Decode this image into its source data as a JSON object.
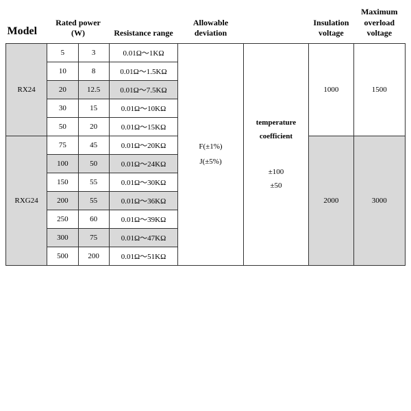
{
  "headers": {
    "model": "Model",
    "rated_power": "Rated power (W)",
    "resistance_range": "Resistance range",
    "allowable_deviation": "Allowable deviation",
    "insulation_voltage": "Insulation voltage",
    "max_overload_voltage": "Maximum overload voltage"
  },
  "deviation": {
    "line1": "F(±1%)",
    "line2": "J(±5%)"
  },
  "tempcoef": {
    "title1": "temperature",
    "title2": "coefficient",
    "val1": "±100",
    "val2": "±50"
  },
  "groups": [
    {
      "model": "RX24",
      "insulation": "1000",
      "max_overload": "1500",
      "rows": [
        {
          "p1": "5",
          "p2": "3",
          "range": "0.01Ω～1KΩ",
          "shade": false
        },
        {
          "p1": "10",
          "p2": "8",
          "range": "0.01Ω～1.5KΩ",
          "shade": false
        },
        {
          "p1": "20",
          "p2": "12.5",
          "range": "0.01Ω～7.5KΩ",
          "shade": true
        },
        {
          "p1": "30",
          "p2": "15",
          "range": "0.01Ω～10KΩ",
          "shade": false
        },
        {
          "p1": "50",
          "p2": "20",
          "range": "0.01Ω～15KΩ",
          "shade": false
        }
      ]
    },
    {
      "model": "RXG24",
      "insulation": "2000",
      "max_overload": "3000",
      "rows": [
        {
          "p1": "75",
          "p2": "45",
          "range": "0.01Ω～20KΩ",
          "shade": false
        },
        {
          "p1": "100",
          "p2": "50",
          "range": "0.01Ω～24KΩ",
          "shade": true
        },
        {
          "p1": "150",
          "p2": "55",
          "range": "0.01Ω～30KΩ",
          "shade": false
        },
        {
          "p1": "200",
          "p2": "55",
          "range": "0.01Ω～36KΩ",
          "shade": true
        },
        {
          "p1": "250",
          "p2": "60",
          "range": "0.01Ω～39KΩ",
          "shade": false
        },
        {
          "p1": "300",
          "p2": "75",
          "range": "0.01Ω～47KΩ",
          "shade": true
        },
        {
          "p1": "500",
          "p2": "200",
          "range": "0.01Ω～51KΩ",
          "shade": false
        }
      ]
    }
  ],
  "colors": {
    "shade": "#d9d9d9",
    "border": "#333333",
    "background": "#ffffff",
    "text": "#000000"
  }
}
